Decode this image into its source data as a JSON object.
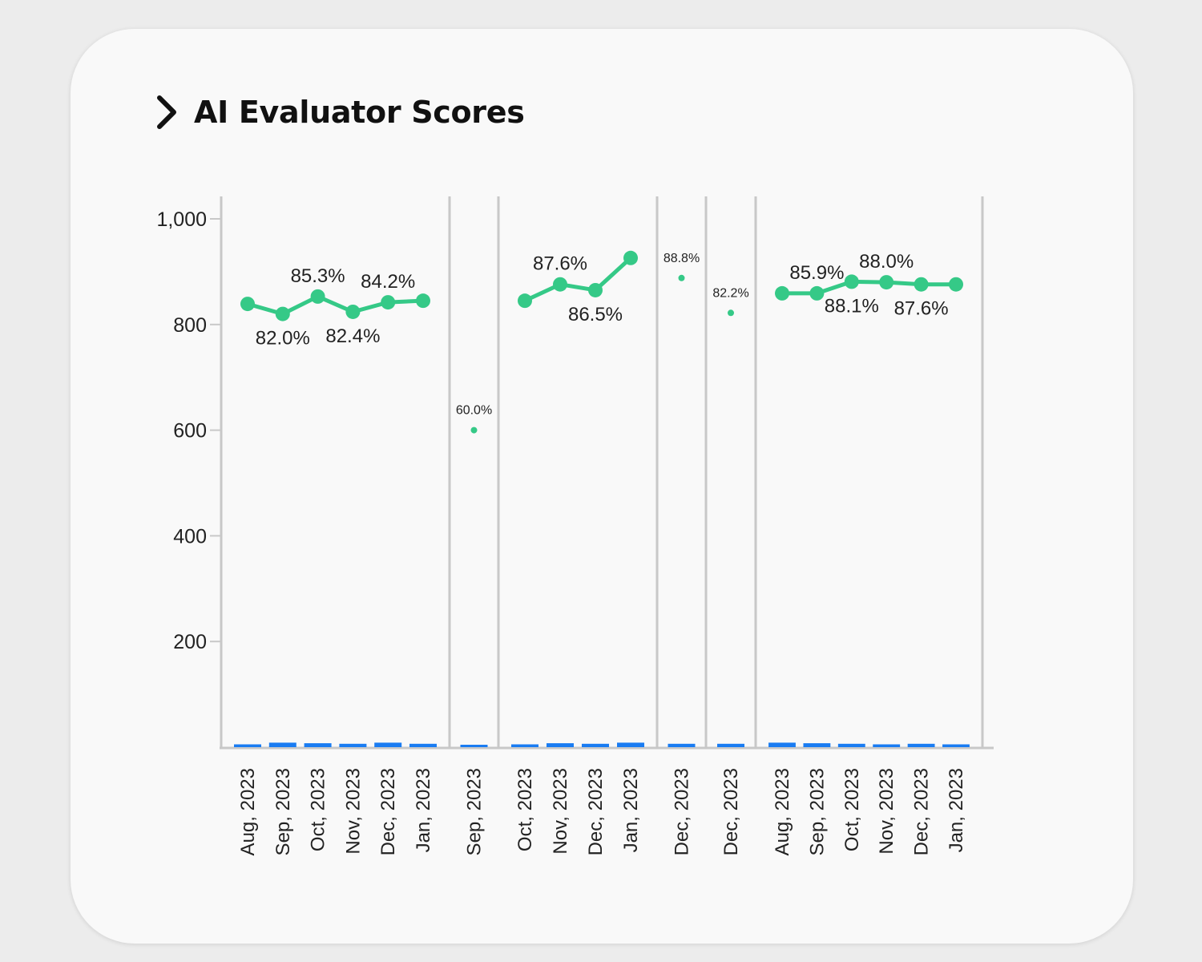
{
  "header": {
    "title": "AI Evaluator Scores",
    "toggle_icon": "chevron-right-icon"
  },
  "colors": {
    "line": "#35c987",
    "bar": "#1a7cf2",
    "axis": "#c8c8c8",
    "text": "#222222"
  },
  "chart_data": {
    "type": "line",
    "y_axis": {
      "ticks": [
        200,
        400,
        600,
        800,
        1000
      ],
      "tick_labels": [
        "200",
        "400",
        "600",
        "800",
        "1,000"
      ],
      "ylim": [
        0,
        1000
      ]
    },
    "grid": false,
    "panels": [
      {
        "categories": [
          "Aug, 2023",
          "Sep, 2023",
          "Oct, 2023",
          "Nov, 2023",
          "Dec, 2023",
          "Jan, 2023"
        ],
        "values": [
          839,
          820,
          853,
          824,
          842,
          845
        ],
        "value_labels": [
          "",
          "82.0%",
          "85.3%",
          "82.4%",
          "84.2%",
          ""
        ],
        "label_pos": [
          "",
          "below",
          "above",
          "below",
          "above",
          ""
        ],
        "bar_values": [
          5,
          8,
          7,
          6,
          8,
          6
        ]
      },
      {
        "categories": [
          "Sep, 2023"
        ],
        "values": [
          600
        ],
        "value_labels": [
          "60.0%"
        ],
        "label_pos": [
          "above"
        ],
        "bar_values": [
          4
        ]
      },
      {
        "categories": [
          "Oct, 2023",
          "Nov, 2023",
          "Dec, 2023",
          "Jan, 2023"
        ],
        "values": [
          845,
          876,
          865,
          926
        ],
        "value_labels": [
          "",
          "87.6%",
          "86.5%",
          ""
        ],
        "label_pos": [
          "",
          "above",
          "below",
          ""
        ],
        "bar_values": [
          5,
          7,
          6,
          8
        ]
      },
      {
        "categories": [
          "Dec, 2023"
        ],
        "values": [
          888
        ],
        "value_labels": [
          "88.8%"
        ],
        "label_pos": [
          "above"
        ],
        "bar_values": [
          6
        ]
      },
      {
        "categories": [
          "Dec, 2023"
        ],
        "values": [
          822
        ],
        "value_labels": [
          "82.2%"
        ],
        "label_pos": [
          "above"
        ],
        "bar_values": [
          6
        ]
      },
      {
        "categories": [
          "Aug, 2023",
          "Sep, 2023",
          "Oct, 2023",
          "Nov, 2023",
          "Dec, 2023",
          "Jan, 2023"
        ],
        "values": [
          859,
          859,
          881,
          880,
          876,
          876
        ],
        "value_labels": [
          "",
          "85.9%",
          "88.1%",
          "88.0%",
          "87.6%",
          ""
        ],
        "label_pos": [
          "",
          "above",
          "below",
          "above",
          "below",
          ""
        ],
        "bar_values": [
          8,
          7,
          6,
          5,
          6,
          5
        ]
      }
    ]
  }
}
